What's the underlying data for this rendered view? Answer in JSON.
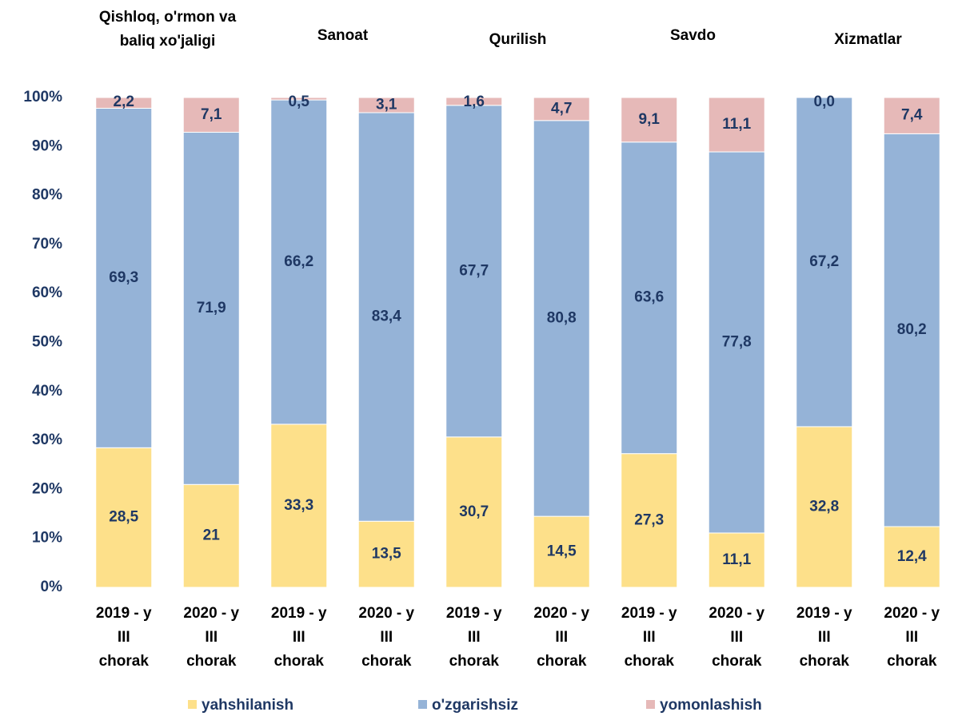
{
  "chart_data": {
    "type": "stacked_bar_100",
    "groups": [
      [
        "Qishloq, o'rmon va",
        "baliq xo'jaligi"
      ],
      [
        "Sanoat"
      ],
      [
        "Qurilish"
      ],
      [
        "Savdo"
      ],
      [
        "Xizmatlar"
      ]
    ],
    "categories": [
      [
        "2019 - y",
        "III",
        "chorak"
      ],
      [
        "2020 - y",
        "III",
        "chorak"
      ],
      [
        "2019 - y",
        "III",
        "chorak"
      ],
      [
        "2020 - y",
        "III",
        "chorak"
      ],
      [
        "2019 - y",
        "III",
        "chorak"
      ],
      [
        "2020 - y",
        "III",
        "chorak"
      ],
      [
        "2019 - y",
        "III",
        "chorak"
      ],
      [
        "2020 - y",
        "III",
        "chorak"
      ],
      [
        "2019 - y",
        "III",
        "chorak"
      ],
      [
        "2020 - y",
        "III",
        "chorak"
      ]
    ],
    "series": [
      {
        "name": "yahshilanish",
        "color": "#fde08a",
        "values": [
          28.5,
          21,
          33.3,
          13.5,
          30.7,
          14.5,
          27.3,
          11.1,
          32.8,
          12.4
        ],
        "value_labels": [
          "28,5",
          "21",
          "33,3",
          "13,5",
          "30,7",
          "14,5",
          "27,3",
          "11,1",
          "32,8",
          "12,4"
        ]
      },
      {
        "name": "o'zgarishsiz",
        "color": "#95b3d7",
        "values": [
          69.3,
          71.9,
          66.2,
          83.4,
          67.7,
          80.8,
          63.6,
          77.8,
          67.2,
          80.2
        ],
        "value_labels": [
          "69,3",
          "71,9",
          "66,2",
          "83,4",
          "67,7",
          "80,8",
          "63,6",
          "77,8",
          "67,2",
          "80,2"
        ]
      },
      {
        "name": "yomonlashish",
        "color": "#e6b9b8",
        "values": [
          2.2,
          7.1,
          0.5,
          3.1,
          1.6,
          4.7,
          9.1,
          11.1,
          0.0,
          7.4
        ],
        "value_labels": [
          "2,2",
          "7,1",
          "0,5",
          "3,1",
          "1,6",
          "4,7",
          "9,1",
          "11,1",
          "0,0",
          "7,4"
        ]
      }
    ],
    "ylim": [
      0,
      100
    ],
    "yticks": [
      {
        "value": 0,
        "label": "0%"
      },
      {
        "value": 10,
        "label": "10%"
      },
      {
        "value": 20,
        "label": "20%"
      },
      {
        "value": 30,
        "label": "30%"
      },
      {
        "value": 40,
        "label": "40%"
      },
      {
        "value": 50,
        "label": "50%"
      },
      {
        "value": 60,
        "label": "60%"
      },
      {
        "value": 70,
        "label": "70%"
      },
      {
        "value": 80,
        "label": "80%"
      },
      {
        "value": 90,
        "label": "90%"
      },
      {
        "value": 100,
        "label": "100%"
      }
    ],
    "legend": "bottom"
  }
}
